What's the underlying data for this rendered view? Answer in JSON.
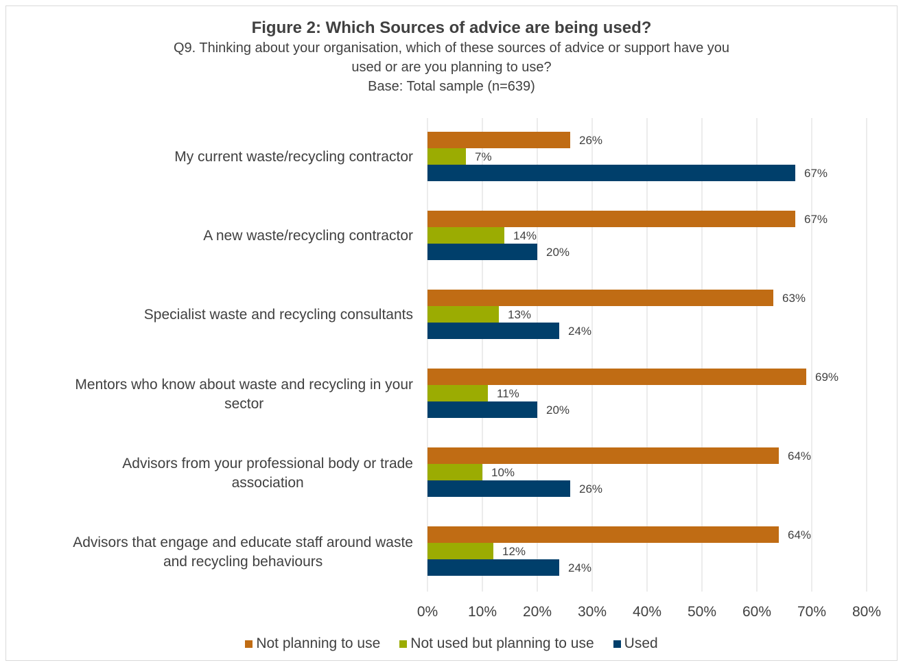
{
  "title": "Figure 2: Which Sources of advice are being used?",
  "subtitle_lines": [
    "Q9. Thinking  about your organisation, which of these sources of advice or support have you",
    "used or are you planning to use?",
    "Base: Total sample (n=639)"
  ],
  "colors": {
    "not_planning": "#c06c14",
    "planning": "#9bac02",
    "used": "#003f6b",
    "grid": "#d9d9d9"
  },
  "chart_data": {
    "type": "bar",
    "orientation": "horizontal",
    "categories": [
      [
        "My current waste/recycling contractor"
      ],
      [
        "A new waste/recycling contractor"
      ],
      [
        "Specialist waste and recycling consultants"
      ],
      [
        "Mentors who know about waste and recycling in your",
        "sector"
      ],
      [
        "Advisors from your professional body or trade",
        "association"
      ],
      [
        "Advisors that engage and educate staff around waste",
        "and recycling behaviours"
      ]
    ],
    "series": [
      {
        "name": "Not planning to use",
        "color": "#c06c14",
        "values": [
          26,
          67,
          63,
          69,
          64,
          64
        ],
        "labels": [
          "26%",
          "67%",
          "63%",
          "69%",
          "64%",
          "64%"
        ]
      },
      {
        "name": "Not used but planning to use",
        "color": "#9bac02",
        "values": [
          7,
          14,
          13,
          11,
          10,
          12
        ],
        "labels": [
          "7%",
          "14%",
          "13%",
          "11%",
          "10%",
          "12%"
        ]
      },
      {
        "name": "Used",
        "color": "#003f6b",
        "values": [
          67,
          20,
          24,
          20,
          26,
          24
        ],
        "labels": [
          "67%",
          "20%",
          "24%",
          "20%",
          "26%",
          "24%"
        ]
      }
    ],
    "xlim": [
      0,
      80
    ],
    "xticks": [
      0,
      10,
      20,
      30,
      40,
      50,
      60,
      70,
      80
    ],
    "xtick_labels": [
      "0%",
      "10%",
      "20%",
      "30%",
      "40%",
      "50%",
      "60%",
      "70%",
      "80%"
    ],
    "grid": true,
    "legend_position": "bottom"
  }
}
